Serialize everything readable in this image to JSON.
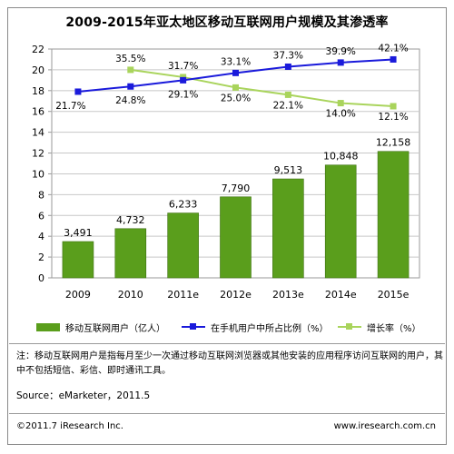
{
  "chart_data": {
    "type": "bar",
    "title": "2009-2015年亚太地区移动互联网用户规模及其渗透率",
    "categories": [
      "2009",
      "2010",
      "2011e",
      "2012e",
      "2013e",
      "2014e",
      "2015e"
    ],
    "ylim": [
      0,
      22
    ],
    "yticks": [
      0,
      2,
      4,
      6,
      8,
      10,
      12,
      14,
      16,
      18,
      20,
      22
    ],
    "grid": true,
    "series": [
      {
        "name": "移动互联网用户（亿人）",
        "type": "bar",
        "color": "#5a9e1c",
        "values": [
          3.491,
          4.732,
          6.233,
          7.79,
          9.513,
          10.848,
          12.158
        ],
        "labels": [
          "3,491",
          "4,732",
          "6,233",
          "7,790",
          "9,513",
          "10,848",
          "12,158"
        ]
      },
      {
        "name": "在手机用户中所占比例（%）",
        "type": "line",
        "color": "#1a1adb",
        "values": [
          17.9,
          18.4,
          19.0,
          19.7,
          20.3,
          20.7,
          21.0
        ],
        "labels": [
          "21.7%",
          "24.8%",
          "29.1%",
          "33.1%",
          "37.3%",
          "39.9%",
          "42.1%"
        ]
      },
      {
        "name": "增长率（%）",
        "type": "line",
        "color": "#a9d45c",
        "values": [
          null,
          20.0,
          19.3,
          18.3,
          17.6,
          16.8,
          16.5
        ],
        "labels": [
          "",
          "35.5%",
          "31.7%",
          "25.0%",
          "22.1%",
          "14.0%",
          "12.1%"
        ]
      }
    ]
  },
  "legend": {
    "bar": "移动互联网用户（亿人）",
    "share": "在手机用户中所占比例（%）",
    "growth": "增长率（%）"
  },
  "note": "注：移动互联网用户是指每月至少一次通过移动互联网浏览器或其他安装的应用程序访问互联网的用户，其中不包括短信、彩信、即时通讯工具。",
  "source": "Source：eMarketer，2011.5",
  "footer": {
    "copyright": "©2011.7 iResearch Inc.",
    "url": "www.iresearch.com.cn"
  }
}
